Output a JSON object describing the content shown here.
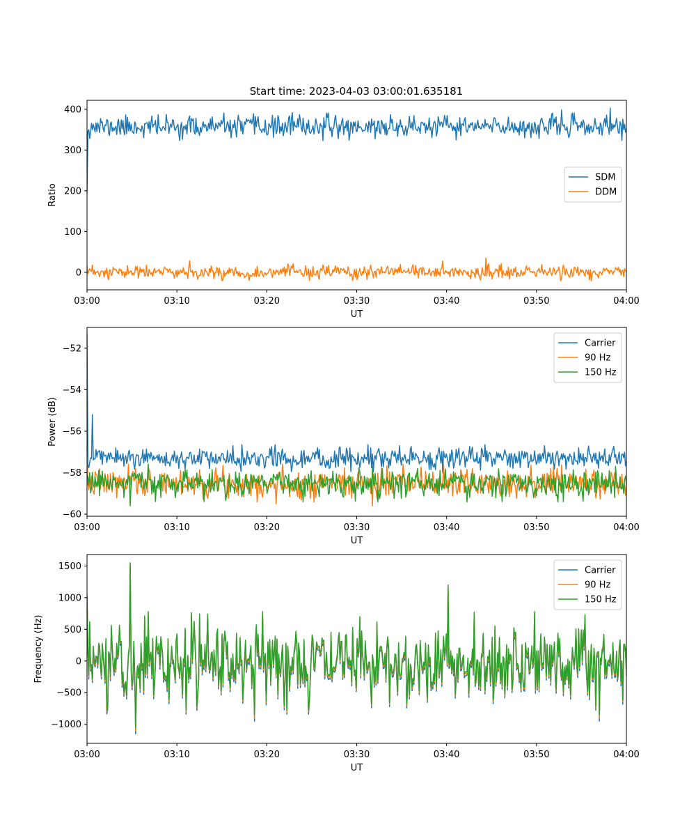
{
  "figure_title": "Start time: 2023-04-03 03:00:01.635181",
  "colors": {
    "blue": "#1f77b4",
    "orange": "#ff7f0e",
    "green": "#2ca02c"
  },
  "chart_data": [
    {
      "id": "ratio",
      "type": "line",
      "title": "Start time: 2023-04-03 03:00:01.635181",
      "xlabel": "UT",
      "ylabel": "Ratio",
      "xlim": [
        "03:00",
        "04:00"
      ],
      "ylim": [
        -43,
        422
      ],
      "xticks": [
        "03:00",
        "03:10",
        "03:20",
        "03:30",
        "03:40",
        "03:50",
        "04:00"
      ],
      "yticks": [
        0,
        100,
        200,
        300,
        400
      ],
      "ytick_labels": [
        "0",
        "100",
        "200",
        "300",
        "400"
      ],
      "legend_position": "center-right",
      "grid": false,
      "series": [
        {
          "name": "SDM",
          "color": "#1f77b4",
          "base": 357,
          "noise": 13,
          "seed": 11,
          "spikes": [
            [
              0,
              193
            ],
            [
              1,
              350
            ],
            [
              38,
              392
            ],
            [
              46,
              385
            ],
            [
              88,
              398
            ],
            [
              97,
              403
            ]
          ]
        },
        {
          "name": "DDM",
          "color": "#ff7f0e",
          "base": 0,
          "noise": 8,
          "seed": 23,
          "spikes": [
            [
              19,
              28
            ],
            [
              66,
              28
            ],
            [
              74,
              35
            ],
            [
              4,
              -18
            ],
            [
              30,
              -20
            ],
            [
              52,
              -18
            ]
          ]
        }
      ]
    },
    {
      "id": "power",
      "type": "line",
      "xlabel": "UT",
      "ylabel": "Power (dB)",
      "xlim": [
        "03:00",
        "04:00"
      ],
      "ylim": [
        -60.1,
        -51.0
      ],
      "xticks": [
        "03:00",
        "03:10",
        "03:20",
        "03:30",
        "03:40",
        "03:50",
        "04:00"
      ],
      "yticks": [
        -60,
        -58,
        -56,
        -54,
        -52
      ],
      "ytick_labels": [
        "−60",
        "−58",
        "−56",
        "−54",
        "−52"
      ],
      "legend_position": "top-right",
      "grid": false,
      "series": [
        {
          "name": "Carrier",
          "color": "#1f77b4",
          "base": -57.3,
          "noise": 0.25,
          "seed": 5,
          "spikes": [
            [
              0,
              -51.3
            ],
            [
              1,
              -55.2
            ],
            [
              2,
              -57.0
            ],
            [
              27,
              -56.7
            ],
            [
              58,
              -56.7
            ],
            [
              66,
              -58.0
            ]
          ]
        },
        {
          "name": "90 Hz",
          "color": "#ff7f0e",
          "base": -58.5,
          "noise": 0.35,
          "seed": 7,
          "spikes": [
            [
              0,
              -57.0
            ],
            [
              35,
              -59.5
            ],
            [
              53,
              -59.6
            ]
          ]
        },
        {
          "name": "150 Hz",
          "color": "#2ca02c",
          "base": -58.5,
          "noise": 0.35,
          "seed": 9,
          "spikes": [
            [
              8,
              -59.6
            ],
            [
              40,
              -59.4
            ],
            [
              77,
              -59.4
            ]
          ]
        }
      ]
    },
    {
      "id": "frequency",
      "type": "line",
      "xlabel": "UT",
      "ylabel": "Frequency (Hz)",
      "xlim": [
        "03:00",
        "04:00"
      ],
      "ylim": [
        -1300,
        1680
      ],
      "xticks": [
        "03:00",
        "03:10",
        "03:20",
        "03:30",
        "03:40",
        "03:50",
        "04:00"
      ],
      "yticks": [
        -1000,
        -500,
        0,
        500,
        1000,
        1500
      ],
      "ytick_labels": [
        "−1000",
        "−500",
        "0",
        "500",
        "1000",
        "1500"
      ],
      "legend_position": "top-right",
      "grid": false,
      "series": [
        {
          "name": "Carrier",
          "color": "#1f77b4",
          "base": -60,
          "noise": 300,
          "seed": 31,
          "spikes": [
            [
              0,
              1000
            ],
            [
              8,
              1500
            ],
            [
              9,
              -1150
            ],
            [
              31,
              -950
            ],
            [
              67,
              1150
            ],
            [
              95,
              -950
            ]
          ]
        },
        {
          "name": "90 Hz",
          "color": "#ff7f0e",
          "base": -25,
          "noise": 300,
          "seed": 31,
          "spikes": [
            [
              0,
              1030
            ],
            [
              8,
              1530
            ],
            [
              9,
              -1100
            ],
            [
              31,
              -900
            ],
            [
              67,
              1180
            ],
            [
              95,
              -900
            ]
          ]
        },
        {
          "name": "150 Hz",
          "color": "#2ca02c",
          "base": 0,
          "noise": 300,
          "seed": 31,
          "spikes": [
            [
              0,
              1050
            ],
            [
              8,
              1550
            ],
            [
              9,
              -1050
            ],
            [
              31,
              -850
            ],
            [
              67,
              1200
            ],
            [
              95,
              -850
            ]
          ]
        }
      ]
    }
  ]
}
